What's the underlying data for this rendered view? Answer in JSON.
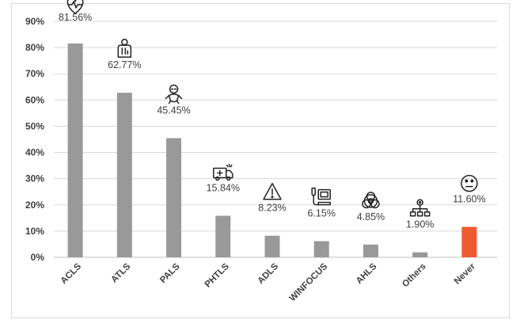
{
  "chart_data": {
    "type": "bar",
    "categories": [
      "ACLS",
      "ATLS",
      "PALS",
      "PHTLS",
      "ADLS",
      "WINFOCUS",
      "AHLS",
      "Others",
      "Never"
    ],
    "values": [
      81.56,
      62.77,
      45.45,
      15.84,
      8.23,
      6.15,
      4.85,
      1.9,
      11.6
    ],
    "data_labels": [
      "81.56%",
      "62.77%",
      "45.45%",
      "15.84%",
      "8.23%",
      "6.15%",
      "4.85%",
      "1.90%",
      "11.60%"
    ],
    "y_ticks": [
      "0%",
      "10%",
      "20%",
      "30%",
      "40%",
      "50%",
      "60%",
      "70%",
      "80%",
      "90%"
    ],
    "ylim": [
      0,
      90
    ],
    "y_unit": "%",
    "grid": true,
    "legend": "none",
    "title": "",
    "xlabel": "",
    "ylabel": "",
    "colors": {
      "default_bar": "#999999",
      "highlight_bar": "#f05a30",
      "gridline": "#d9d9d9",
      "text": "#404040"
    },
    "highlight_category": "Never",
    "icons": [
      "heart-icon",
      "person-icon",
      "baby-icon",
      "ambulance-icon",
      "warning-icon",
      "ultrasound-icon",
      "biohazard-icon",
      "network-icon",
      "neutral-face-icon"
    ]
  }
}
